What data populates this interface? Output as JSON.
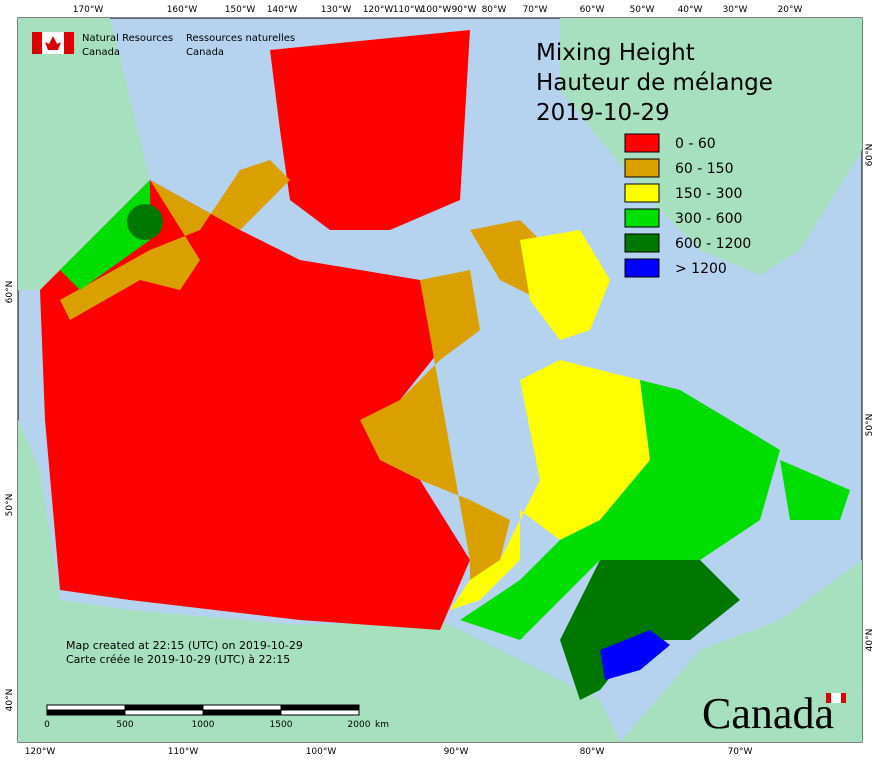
{
  "header": {
    "agency_en": [
      "Natural Resources",
      "Canada"
    ],
    "agency_fr": [
      "Ressources naturelles",
      "Canada"
    ]
  },
  "title": [
    "Mixing Height",
    "Hauteur de mélange",
    "2019-10-29"
  ],
  "legend": [
    {
      "label": "0 - 60",
      "color": "#ff0000"
    },
    {
      "label": "60 - 150",
      "color": "#daa000"
    },
    {
      "label": "150 - 300",
      "color": "#ffff00"
    },
    {
      "label": "300 - 600",
      "color": "#00dd00"
    },
    {
      "label": "600 - 1200",
      "color": "#007700"
    },
    {
      "label": "> 1200",
      "color": "#0000ff"
    }
  ],
  "lon_top": [
    "170°W",
    "160°W",
    "150°W",
    "140°W",
    "130°W",
    "120°W",
    "110°W",
    "100°W",
    "90°W",
    "80°W",
    "70°W",
    "60°W",
    "50°W",
    "40°W",
    "30°W",
    "20°W"
  ],
  "lon_bottom": [
    "120°W",
    "110°W",
    "100°W",
    "90°W",
    "80°W",
    "70°W"
  ],
  "lat_left": [
    "60°N",
    "50°N",
    "40°N"
  ],
  "lat_right": [
    "60°N",
    "50°N",
    "40°N"
  ],
  "footnote": [
    "Map created at 22:15 (UTC) on 2019-10-29",
    "Carte créée le 2019-10-29 (UTC) à 22:15"
  ],
  "scale": {
    "ticks": [
      0,
      500,
      1000,
      1500,
      2000
    ],
    "unit": "km"
  },
  "wordmark": "Canada"
}
